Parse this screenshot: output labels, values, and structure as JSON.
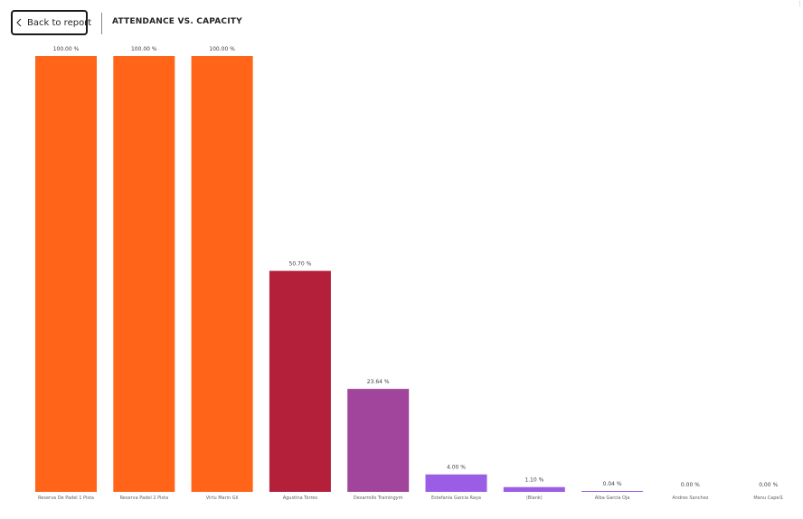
{
  "header": {
    "back_label": "Back to report",
    "title": "ATTENDANCE VS. CAPACITY"
  },
  "chart_data": {
    "type": "bar",
    "title": "ATTENDANCE VS. CAPACITY",
    "xlabel": "",
    "ylabel": "",
    "ylim": [
      0,
      100
    ],
    "grid": false,
    "categories": [
      "Reserva De Padel 1 Pista",
      "Reserva Padel 2 Pista",
      "Virtu Marin Gil",
      "Agustina Torres",
      "Desarrollo Trainingym",
      "Estefania Garcia Raya",
      "(Blank)",
      "Alba Garcia Oja",
      "Andres Sanchez",
      "Manu Capel1"
    ],
    "values": [
      100.0,
      100.0,
      100.0,
      50.7,
      23.64,
      4.0,
      1.1,
      0.04,
      0.0,
      0.0
    ],
    "data_labels": [
      "100.00 %",
      "100.00 %",
      "100.00 %",
      "50.70 %",
      "23.64 %",
      "4.00 %",
      "1.10 %",
      "0.04 %",
      "0.00 %",
      "0.00 %"
    ],
    "colors": [
      "#ff6418",
      "#ff6418",
      "#ff6418",
      "#b41f3a",
      "#a0459b",
      "#9b5de5",
      "#9b5de5",
      "#9b5de5",
      "#9b5de5",
      "#9b5de5"
    ]
  }
}
